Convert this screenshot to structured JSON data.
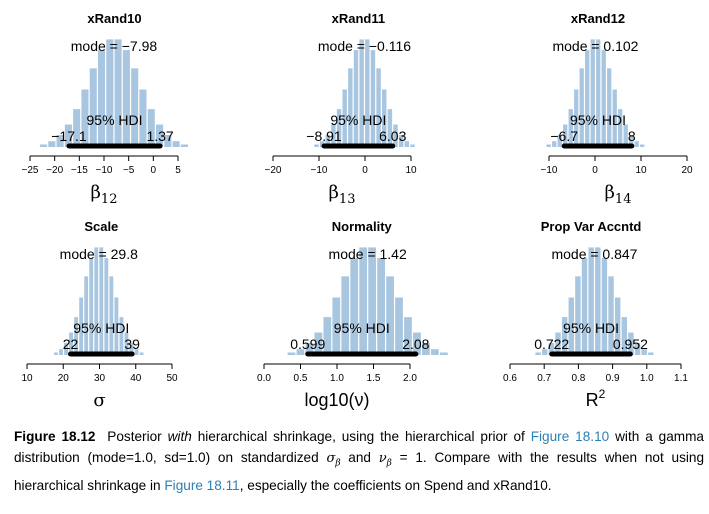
{
  "chart_data": [
    {
      "type": "histogram",
      "title": "xRand10",
      "xlabel": "β",
      "xlabel_sub": "12",
      "xlim": [
        -25,
        5
      ],
      "ticks": [
        -25,
        -20,
        -15,
        -10,
        -5,
        0,
        5
      ],
      "mode": -7.98,
      "mode_text": "mode = −7.98",
      "hdi_text": "95% HDI",
      "hdi": [
        -17.1,
        1.37
      ],
      "hdi_low_text": "−17.1",
      "hdi_high_text": "1.37",
      "sd": 5.2
    },
    {
      "type": "histogram",
      "title": "xRand11",
      "xlabel": "β",
      "xlabel_sub": "13",
      "xlim": [
        -20,
        20
      ],
      "ticks": [
        -20,
        -10,
        0,
        10
      ],
      "mode": -0.116,
      "mode_text": "mode = −0.116",
      "hdi_text": "95% HDI",
      "hdi": [
        -8.91,
        6.03
      ],
      "hdi_low_text": "−8.91",
      "hdi_high_text": "6.03",
      "sd": 3.8
    },
    {
      "type": "histogram",
      "title": "xRand12",
      "xlabel": "β",
      "xlabel_sub": "14",
      "xlim": [
        -10,
        20
      ],
      "ticks": [
        -10,
        0,
        10,
        20
      ],
      "mode": 0.102,
      "mode_text": "mode = 0.102",
      "hdi_text": "95% HDI",
      "hdi": [
        -6.7,
        8
      ],
      "hdi_low_text": "−6.7",
      "hdi_high_text": "8",
      "sd": 3.7
    },
    {
      "type": "histogram",
      "title": "Scale",
      "xlabel": "σ",
      "xlabel_sub": "",
      "xlim": [
        10,
        50
      ],
      "ticks": [
        10,
        20,
        30,
        40,
        50
      ],
      "mode": 29.8,
      "mode_text": "mode = 29.8",
      "hdi_text": "95% HDI",
      "hdi": [
        22,
        39
      ],
      "hdi_low_text": "22",
      "hdi_high_text": "39",
      "sd": 4.3
    },
    {
      "type": "histogram",
      "title": "Normality",
      "xlabel": "log10(ν)",
      "xlabel_sub": "",
      "xlim": [
        0.0,
        2.0
      ],
      "ticks": [
        0.0,
        0.5,
        1.0,
        1.5,
        2.0
      ],
      "tick_labels": [
        "0.0",
        "0.5",
        "1.0",
        "1.5",
        "2.0"
      ],
      "mode": 1.42,
      "mode_text": "mode = 1.42",
      "hdi_text": "95% HDI",
      "hdi": [
        0.599,
        2.08
      ],
      "hdi_low_text": "0.599",
      "hdi_high_text": "2.08",
      "sd": 0.38
    },
    {
      "type": "histogram",
      "title": "Prop Var Accntd",
      "xlabel": "R",
      "xlabel_sup": "2",
      "xlim": [
        0.6,
        1.1
      ],
      "ticks": [
        0.6,
        0.7,
        0.8,
        0.9,
        1.0,
        1.1
      ],
      "tick_labels": [
        "0.6",
        "0.7",
        "0.8",
        "0.9",
        "1.0",
        "1.1"
      ],
      "mode": 0.847,
      "mode_text": "mode = 0.847",
      "hdi_text": "95% HDI",
      "hdi": [
        0.722,
        0.952
      ],
      "hdi_low_text": "0.722",
      "hdi_high_text": "0.952",
      "sd": 0.06
    }
  ],
  "colors": {
    "bar": "#a9c6e0",
    "hdi_bar": "#000000",
    "link": "#2e7fb4"
  },
  "caption": {
    "fig_num": "Figure 18.12",
    "part1": "Posterior ",
    "em": "with",
    "part2": " hierarchical shrinkage, using the hierarchical prior of ",
    "link1": "Figure 18.10",
    "part3": " with a gamma distribution (mode=1.0, sd=1.0) on standardized ",
    "sigma_beta": "σ",
    "sigma_sub": "β",
    "and": " and ",
    "nu_beta": "ν",
    "nu_sub": "β",
    "eq": " = 1",
    "part4": ". Compare with the results when not using hierarchical shrinkage in ",
    "link2": "Figure 18.11",
    "part5": ", especially the coefficients on Spend and xRand10."
  }
}
